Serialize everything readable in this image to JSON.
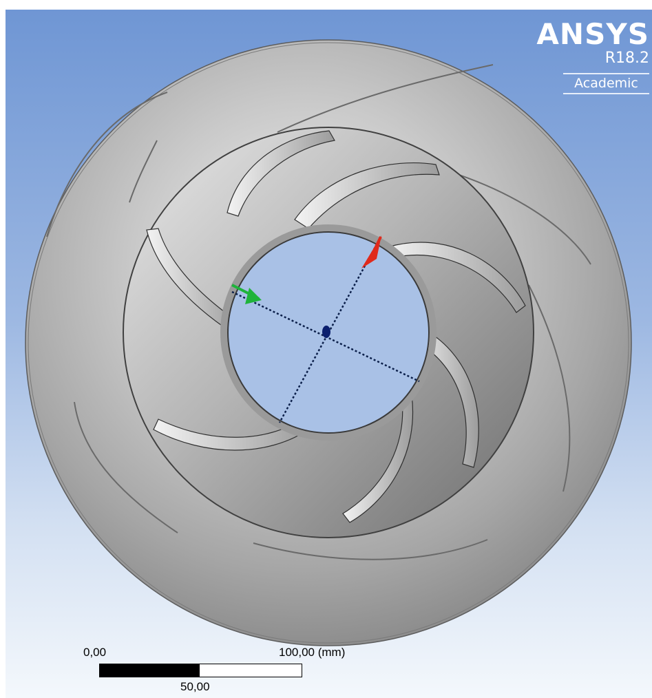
{
  "logo": {
    "name": "ANSYS",
    "version": "R18.2",
    "edition": "Academic"
  },
  "scale_bar": {
    "start_label": "0,00",
    "end_label": "100,00 (mm)",
    "mid_label": "50,00"
  },
  "colors": {
    "background_top": "#6f96d4",
    "background_bottom": "#f4f8fc",
    "part_gray": "#b3b3b3",
    "axis_x": "#e02a1c",
    "axis_y": "#1fb33a",
    "axis_origin": "#0b1f6e"
  },
  "model": {
    "part": "impeller",
    "blade_count": 7,
    "view": "axial front"
  }
}
